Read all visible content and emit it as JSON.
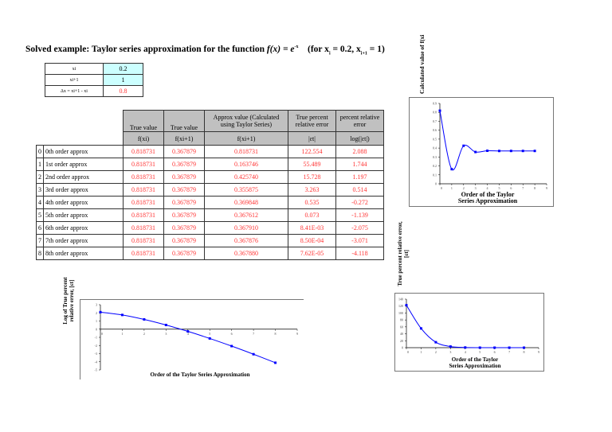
{
  "title": {
    "prefix": "Solved example: Taylor series approximation for the function ",
    "func": "f(x) = e",
    "sup": "-x",
    "cond": "(for x",
    "cond2": " = 0.2,   x",
    "cond3": " = 1)",
    "sub_i": "i",
    "sub_i1": "i+1"
  },
  "inputs": [
    {
      "label": "xi",
      "value": "0.2"
    },
    {
      "label": "xi+1",
      "value": "1"
    },
    {
      "label": "Δx = xi+1 - xi",
      "value": "0.8"
    }
  ],
  "table": {
    "headers": [
      "True value",
      "True value",
      "Approx value (Calculated using Taylor Series)",
      "True percent relative error",
      "percent relative error"
    ],
    "subheaders": [
      "f(xi)",
      "f(xi+1)",
      "f(xi+1)",
      "|εt|",
      "log(|εt|)"
    ],
    "rows": [
      {
        "i": "0",
        "label": "0th order approx",
        "fxi": "0.818731",
        "fxi1": "0.367879",
        "approx": "0.818731",
        "et": "122.554",
        "log": "2.088"
      },
      {
        "i": "1",
        "label": "1st order approx",
        "fxi": "0.818731",
        "fxi1": "0.367879",
        "approx": "0.163746",
        "et": "55.489",
        "log": "1.744"
      },
      {
        "i": "2",
        "label": "2nd order approx",
        "fxi": "0.818731",
        "fxi1": "0.367879",
        "approx": "0.425740",
        "et": "15.728",
        "log": "1.197"
      },
      {
        "i": "3",
        "label": "3rd order approx",
        "fxi": "0.818731",
        "fxi1": "0.367879",
        "approx": "0.355875",
        "et": "3.263",
        "log": "0.514"
      },
      {
        "i": "4",
        "label": "4th order approx",
        "fxi": "0.818731",
        "fxi1": "0.367879",
        "approx": "0.369848",
        "et": "0.535",
        "log": "-0.272"
      },
      {
        "i": "5",
        "label": "5th order approx",
        "fxi": "0.818731",
        "fxi1": "0.367879",
        "approx": "0.367612",
        "et": "0.073",
        "log": "-1.139"
      },
      {
        "i": "6",
        "label": "6th order approx",
        "fxi": "0.818731",
        "fxi1": "0.367879",
        "approx": "0.367910",
        "et": "8.41E-03",
        "log": "-2.075"
      },
      {
        "i": "7",
        "label": "7th order approx",
        "fxi": "0.818731",
        "fxi1": "0.367879",
        "approx": "0.367876",
        "et": "8.50E-04",
        "log": "-3.071"
      },
      {
        "i": "8",
        "label": "8th order approx",
        "fxi": "0.818731",
        "fxi1": "0.367879",
        "approx": "0.367880",
        "et": "7.62E-05",
        "log": "-4.118"
      }
    ]
  },
  "colors": {
    "accent": "#ff3333",
    "input_bg": "#ccffff",
    "line": "#0000ff"
  },
  "chart_data": [
    {
      "type": "line",
      "ylabel": "Calculated value of f(xi",
      "xlabel": "Order of the Taylor Series Approximation",
      "x": [
        0,
        1,
        2,
        3,
        4,
        5,
        6,
        7,
        8
      ],
      "values": [
        0.818731,
        0.163746,
        0.42574,
        0.355875,
        0.369848,
        0.367612,
        0.36791,
        0.367876,
        0.36788
      ],
      "xlim": [
        0,
        9
      ],
      "ylim": [
        0,
        0.9
      ],
      "yticks": [
        0,
        0.1,
        0.2,
        0.3,
        0.4,
        0.5,
        0.6,
        0.7,
        0.8,
        0.9
      ]
    },
    {
      "type": "line",
      "ylabel": "Log of True percent relative error, [εt]",
      "xlabel": "Order of the Taylor Series Approximation",
      "x": [
        0,
        1,
        2,
        3,
        4,
        5,
        6,
        7,
        8
      ],
      "values": [
        2.088,
        1.744,
        1.197,
        0.514,
        -0.272,
        -1.139,
        -2.075,
        -3.071,
        -4.118
      ],
      "xlim": [
        0,
        9
      ],
      "ylim": [
        -5,
        3
      ],
      "yticks": [
        -5,
        -4,
        -3,
        -2,
        -1,
        0,
        1,
        2,
        3
      ]
    },
    {
      "type": "line",
      "ylabel": "True percent relative error, [εt]",
      "xlabel": "Order of the Taylor Series Approximation",
      "x": [
        0,
        1,
        2,
        3,
        4,
        5,
        6,
        7,
        8
      ],
      "values": [
        122.554,
        55.489,
        15.728,
        3.263,
        0.535,
        0.073,
        0.00841,
        0.00085,
        7.62e-05
      ],
      "xlim": [
        0,
        9
      ],
      "ylim": [
        0,
        140
      ],
      "yticks": [
        0,
        20,
        40,
        60,
        80,
        100,
        120,
        140
      ]
    }
  ]
}
